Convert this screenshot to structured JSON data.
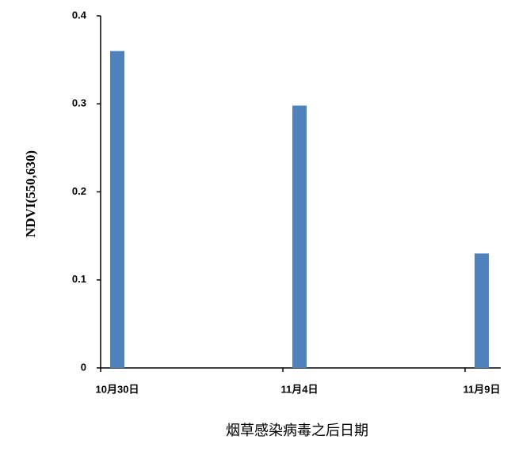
{
  "chart_data": {
    "type": "bar",
    "x_label": "烟草感染病毒之后日期",
    "y_label": "NDVI(550,630)",
    "categories": [
      "10月30日",
      "11月4日",
      "11月9日"
    ],
    "values": [
      0.36,
      0.298,
      0.13
    ],
    "color": "#4f81bd",
    "ylim": [
      0,
      0.4
    ],
    "yticks": [
      0,
      0.1,
      0.2,
      0.3,
      0.4
    ],
    "grid": false
  }
}
